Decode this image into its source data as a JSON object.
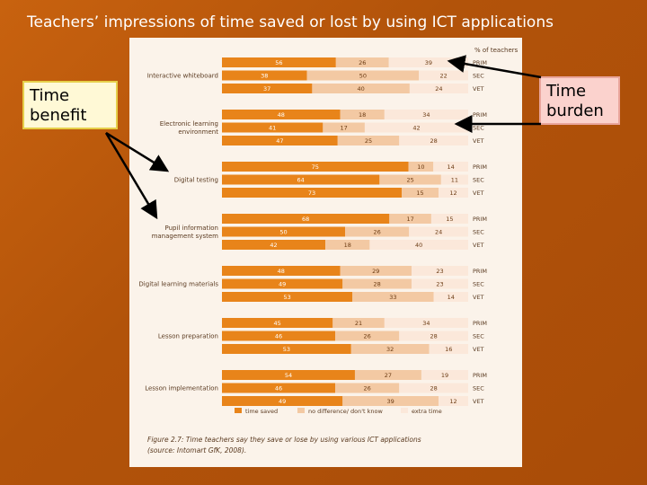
{
  "slide": {
    "title": "Teachers’ impressions of time saved or lost by using ICT applications",
    "callout_benefit": "Time benefit",
    "callout_burden": "Time burden"
  },
  "colors": {
    "time_saved": "#e8841a",
    "no_difference": "#f3c9a3",
    "extra_time": "#fbe8da",
    "slide_background": "#b8570c",
    "arrow": "#000000"
  },
  "chart_data": {
    "type": "bar",
    "orientation": "horizontal",
    "stacked": true,
    "unit_label": "% of teachers",
    "sector_labels": [
      "PRIM",
      "SEC",
      "VET"
    ],
    "legend": [
      "time saved",
      "no difference/ don't know",
      "extra time"
    ],
    "legend_placement": "bottom",
    "xlim": [
      0,
      100
    ],
    "caption_line1": "Figure 2.7: Time teachers say they save or lose by using various ICT applications",
    "caption_line2": "(source: Intomart GfK, 2008).",
    "groups": [
      {
        "label": [
          "Interactive whiteboard"
        ],
        "rows": [
          [
            56,
            26,
            39
          ],
          [
            38,
            50,
            22
          ],
          [
            37,
            40,
            24
          ]
        ]
      },
      {
        "label": [
          "Electronic learning",
          "environment"
        ],
        "rows": [
          [
            48,
            18,
            34
          ],
          [
            41,
            17,
            42
          ],
          [
            47,
            25,
            28
          ]
        ]
      },
      {
        "label": [
          "Digital testing"
        ],
        "rows": [
          [
            75,
            10,
            14
          ],
          [
            64,
            25,
            11
          ],
          [
            73,
            15,
            12
          ]
        ]
      },
      {
        "label": [
          "Pupil information",
          "management system"
        ],
        "rows": [
          [
            68,
            17,
            15
          ],
          [
            50,
            26,
            24
          ],
          [
            42,
            18,
            40
          ]
        ]
      },
      {
        "label": [
          "Digital learning materials"
        ],
        "rows": [
          [
            48,
            29,
            23
          ],
          [
            49,
            28,
            23
          ],
          [
            53,
            33,
            14
          ]
        ]
      },
      {
        "label": [
          "Lesson preparation"
        ],
        "rows": [
          [
            45,
            21,
            34
          ],
          [
            46,
            26,
            28
          ],
          [
            53,
            32,
            16
          ]
        ]
      },
      {
        "label": [
          "Lesson implementation"
        ],
        "rows": [
          [
            54,
            27,
            19
          ],
          [
            46,
            26,
            28
          ],
          [
            49,
            39,
            12
          ]
        ]
      }
    ]
  }
}
